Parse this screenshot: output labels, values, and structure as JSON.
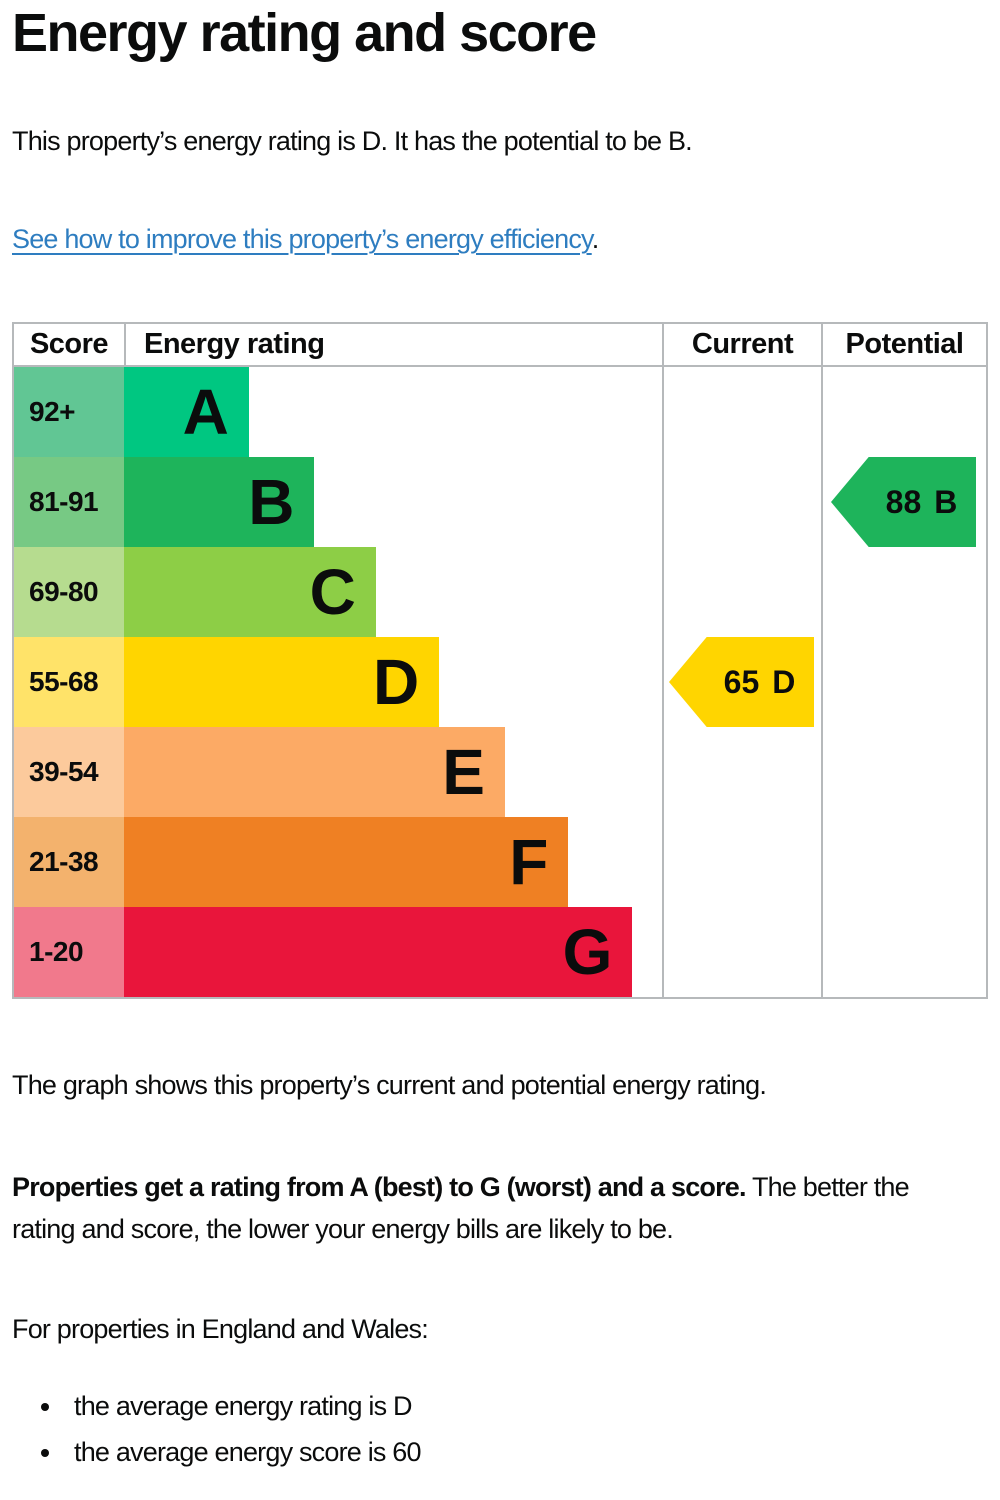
{
  "page": {
    "title": "Energy rating and score",
    "intro": "This property’s energy rating is D. It has the potential to be B.",
    "link_text": "See how to improve this property’s energy efficiency",
    "link_suffix": ".",
    "graph_caption": "The graph shows this property’s current and potential energy rating.",
    "explanation_bold": "Properties get a rating from A (best) to G (worst) and a score.",
    "explanation_rest": " The better the rating and score, the lower your energy bills are likely to be.",
    "region_heading": "For properties in England and Wales:",
    "bullets": [
      "the average energy rating is D",
      "the average energy score is 60"
    ]
  },
  "theme": {
    "text_color": "#0b0c0c",
    "link_color": "#2e7dc0",
    "table_border_color": "#b6b9bb"
  },
  "chart_data": {
    "type": "bar",
    "title": "Energy rating and score",
    "columns": [
      "Score",
      "Energy rating",
      "Current",
      "Potential"
    ],
    "bands": [
      {
        "letter": "A",
        "score": "92+",
        "color": "#00c781",
        "tint": "#61c694",
        "width_pct": 23.2
      },
      {
        "letter": "B",
        "score": "81-91",
        "color": "#1eb45b",
        "tint": "#77c984",
        "width_pct": 35.4
      },
      {
        "letter": "C",
        "score": "69-80",
        "color": "#8dce46",
        "tint": "#b6dc8f",
        "width_pct": 46.8
      },
      {
        "letter": "D",
        "score": "55-68",
        "color": "#ffd500",
        "tint": "#ffe369",
        "width_pct": 58.6
      },
      {
        "letter": "E",
        "score": "39-54",
        "color": "#fcaa65",
        "tint": "#fcca9c",
        "width_pct": 70.8
      },
      {
        "letter": "F",
        "score": "21-38",
        "color": "#ef8023",
        "tint": "#f3b26d",
        "width_pct": 82.6
      },
      {
        "letter": "G",
        "score": "1-20",
        "color": "#e9153b",
        "tint": "#f1798c",
        "width_pct": 94.5
      }
    ],
    "current": {
      "value": "65",
      "letter": "D",
      "color": "#ffd500"
    },
    "potential": {
      "value": "88",
      "letter": "B",
      "color": "#1eb45b"
    }
  }
}
